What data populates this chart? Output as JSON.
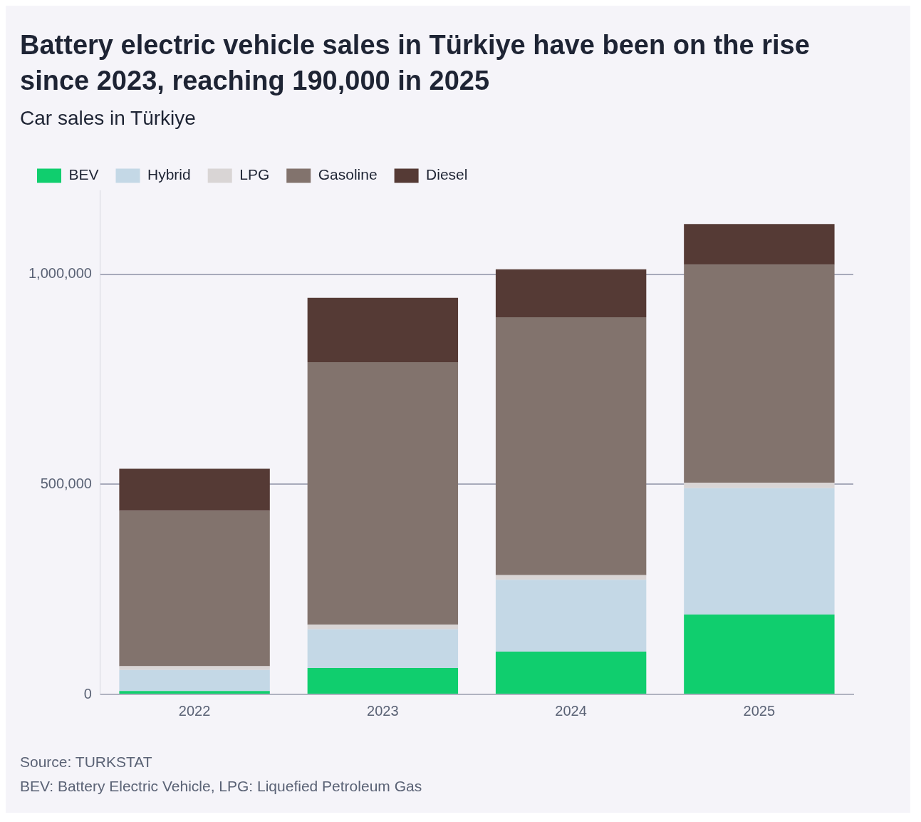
{
  "chart_data": {
    "type": "bar",
    "title": "Battery electric vehicle sales in Türkiye have been on the rise since 2023, reaching 190,000 in 2025",
    "subtitle": "Car sales in Türkiye",
    "categories": [
      "2022",
      "2023",
      "2024",
      "2025"
    ],
    "stacked": true,
    "series": [
      {
        "name": "BEV",
        "color": "#10ce6e",
        "values": [
          8000,
          63000,
          102000,
          190000
        ]
      },
      {
        "name": "Hybrid",
        "color": "#c4d8e6",
        "values": [
          50000,
          92000,
          171000,
          301000
        ]
      },
      {
        "name": "LPG",
        "color": "#d9d5d5",
        "values": [
          9000,
          11000,
          11000,
          13000
        ]
      },
      {
        "name": "Gasoline",
        "color": "#82736d",
        "values": [
          370000,
          625000,
          614000,
          519000
        ]
      },
      {
        "name": "Diesel",
        "color": "#553a35",
        "values": [
          100000,
          153000,
          114000,
          97000
        ]
      }
    ],
    "ylim": [
      0,
      1200000
    ],
    "yticks": [
      0,
      {
        "value": 500000,
        "label": "500,000"
      },
      {
        "value": 1000000,
        "label": "1,000,000"
      }
    ],
    "grid": "y",
    "legend": "top left",
    "annotations": [
      "Source: TURKSTAT",
      "BEV: Battery Electric Vehicle, LPG: Liquefied Petroleum Gas"
    ]
  }
}
